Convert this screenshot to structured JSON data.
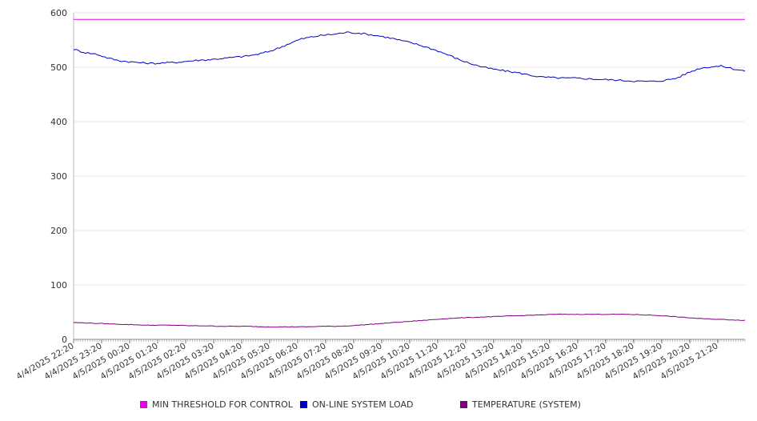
{
  "chart_data": {
    "type": "line",
    "ylim": [
      0,
      600
    ],
    "y_ticks": [
      0,
      100,
      200,
      300,
      400,
      500,
      600
    ],
    "x_start": "4/4/2025 22:00",
    "x_interval_minutes": 5,
    "x_tick_labels": [
      "4/4/2025 22:20",
      "4/4/2025 23:20",
      "4/5/2025 00:20",
      "4/5/2025 01:20",
      "4/5/2025 02:20",
      "4/5/2025 03:20",
      "4/5/2025 04:20",
      "4/5/2025 05:20",
      "4/5/2025 06:20",
      "4/5/2025 07:20",
      "4/5/2025 08:20",
      "4/5/2025 09:20",
      "4/5/2025 10:20",
      "4/5/2025 11:20",
      "4/5/2025 12:20",
      "4/5/2025 13:20",
      "4/5/2025 14:20",
      "4/5/2025 15:20",
      "4/5/2025 16:20",
      "4/5/2025 17:20",
      "4/5/2025 18:20",
      "4/5/2025 19:20",
      "4/5/2025 20:20",
      "4/5/2025 21:20"
    ],
    "series": [
      {
        "name": "MIN THRESHOLD FOR CONTROL",
        "color": "#E600E6",
        "values": [
          588,
          588
        ]
      },
      {
        "name": "ON-LINE SYSTEM LOAD",
        "color": "#0000CC",
        "values": [
          533,
          527,
          524,
          517,
          512,
          510,
          508,
          507,
          508,
          509,
          511,
          513,
          514,
          516,
          518,
          520,
          523,
          528,
          535,
          544,
          552,
          556,
          559,
          561,
          564,
          563,
          560,
          557,
          553,
          548,
          543,
          537,
          530,
          522,
          513,
          506,
          500,
          496,
          493,
          490,
          486,
          482,
          481,
          480,
          480,
          479,
          478,
          477,
          476,
          475,
          474,
          474,
          476,
          480,
          490,
          498,
          501,
          502,
          497,
          493
        ]
      },
      {
        "name": "TEMPERATURE (SYSTEM)",
        "color": "#800080",
        "values": [
          31,
          30,
          29,
          28,
          27,
          26,
          26,
          26,
          25,
          25,
          24,
          24,
          24,
          23,
          23,
          23,
          23,
          24,
          24,
          25,
          27,
          29,
          31,
          33,
          35,
          37,
          39,
          40,
          41,
          42,
          43,
          44,
          45,
          46,
          46,
          46,
          46,
          46,
          46,
          45,
          44,
          42,
          40,
          38,
          37,
          36,
          35
        ]
      }
    ]
  }
}
